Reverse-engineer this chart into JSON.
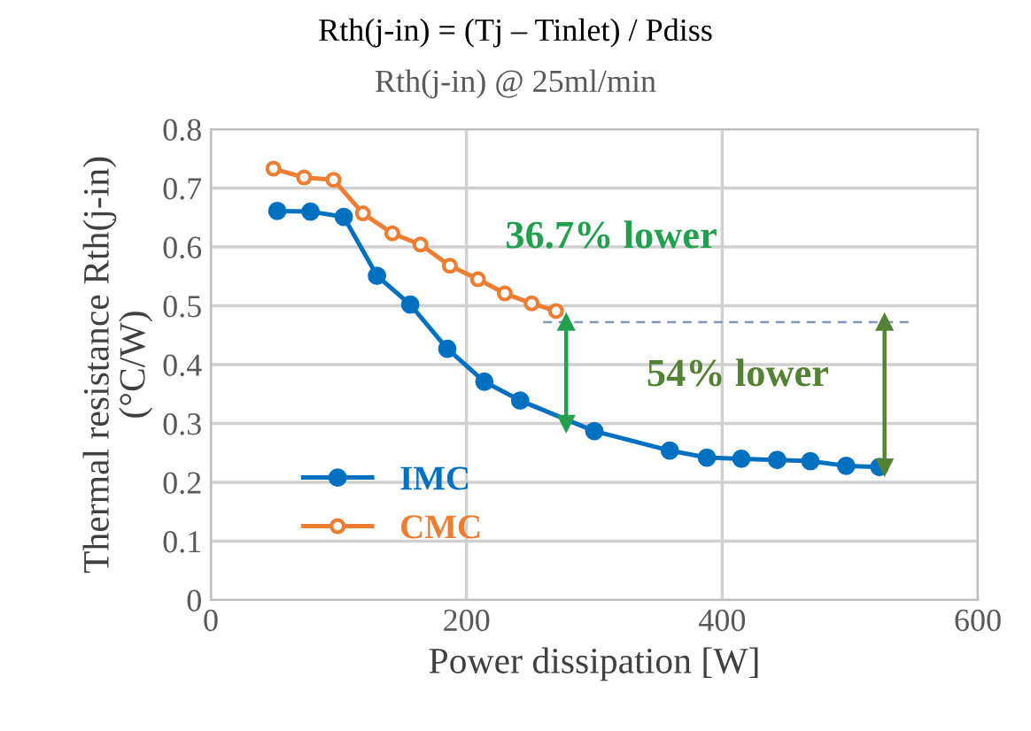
{
  "chart_data": {
    "type": "line",
    "title": "Rth(j-in) = (Tj – Tinlet) / Pdiss",
    "subtitle": "Rth(j-in) @ 25ml/min",
    "xlabel": "Power dissipation [W]",
    "ylabel": "Thermal resistance Rth(j-in)\n(°C/W)",
    "xlim": [
      0,
      600
    ],
    "xticks": [
      0,
      200,
      400,
      600
    ],
    "ylim": [
      0,
      0.8
    ],
    "yticks": [
      0,
      0.1,
      0.2,
      0.3,
      0.4,
      0.5,
      0.6,
      0.7,
      0.8
    ],
    "grid": true,
    "legend": "lower left",
    "marker": "circle",
    "series": [
      {
        "name": "IMC",
        "color": "#0070c0",
        "x": [
          52,
          78,
          104,
          130,
          156,
          185,
          214,
          242,
          300,
          359,
          388,
          415,
          443,
          469,
          497,
          523
        ],
        "values": [
          0.661,
          0.66,
          0.651,
          0.551,
          0.502,
          0.427,
          0.371,
          0.339,
          0.287,
          0.254,
          0.242,
          0.24,
          0.238,
          0.236,
          0.228,
          0.226
        ]
      },
      {
        "name": "CMC",
        "color": "#ed7d31",
        "x": [
          49,
          73,
          96,
          119,
          142,
          164,
          187,
          209,
          230,
          251,
          270
        ],
        "values": [
          0.733,
          0.718,
          0.714,
          0.657,
          0.623,
          0.604,
          0.568,
          0.545,
          0.521,
          0.504,
          0.491
        ]
      },
      {
        "color": "#8497b0",
        "x": [
          260,
          548
        ],
        "values": [
          0.472,
          0.472
        ],
        "marker": "none",
        "line_style": "dashed"
      },
      {
        "color": "#22a050",
        "x": [
          278,
          278
        ],
        "values": [
          0.472,
          0.3
        ],
        "marker": "triangle"
      },
      {
        "color": "#548235",
        "x": [
          527,
          527
        ],
        "values": [
          0.472,
          0.226
        ],
        "marker": "triangle"
      }
    ],
    "annotations": [
      "36.7% lower",
      "54% lower"
    ]
  }
}
